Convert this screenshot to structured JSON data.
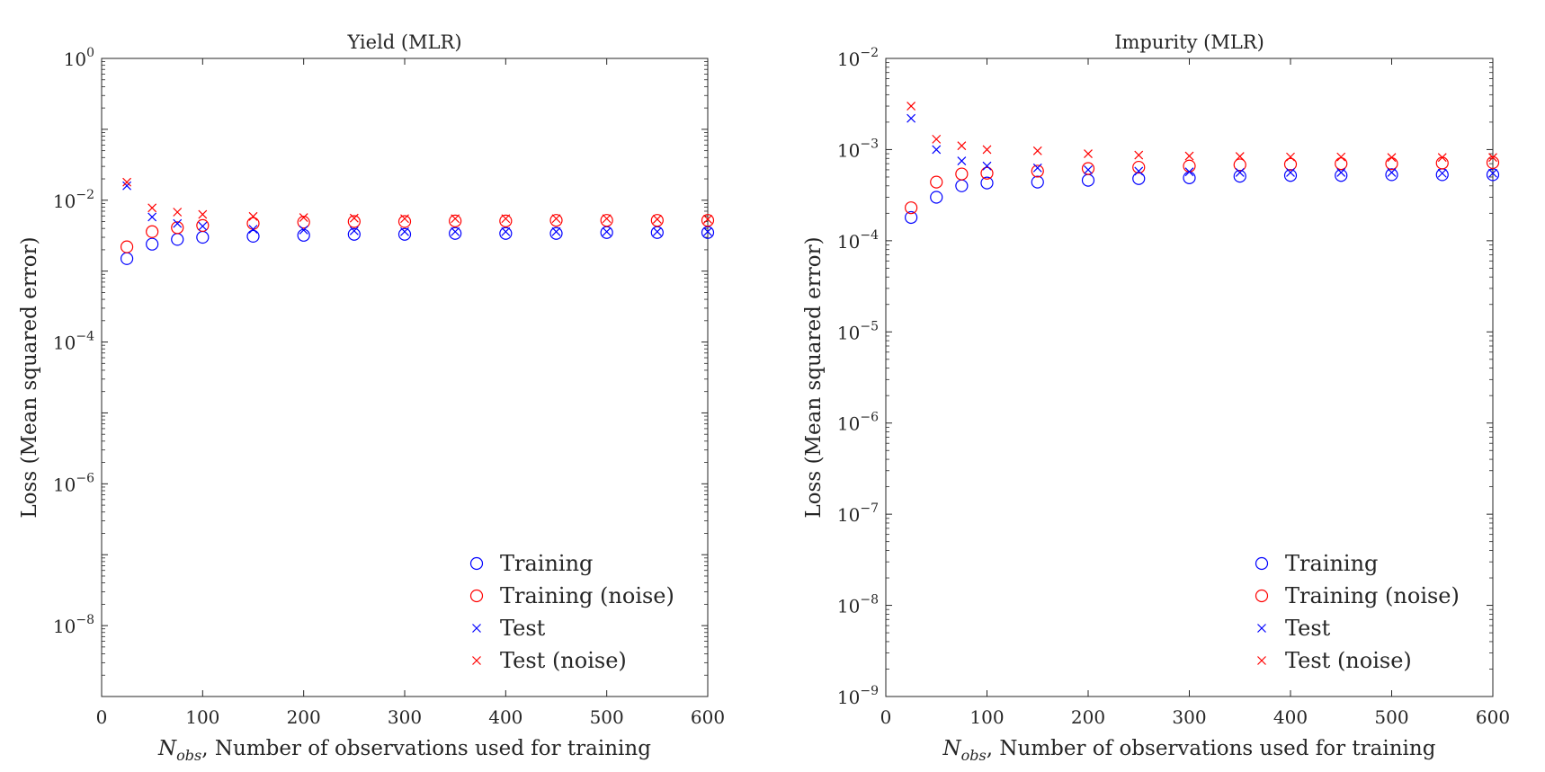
{
  "chart_data": [
    {
      "type": "scatter",
      "title": "Yield (MLR)",
      "xlabel_symbol": "N",
      "xlabel_sub": "obs",
      "xlabel_rest": ", Number of observations used for training",
      "ylabel": "Loss (Mean squared error)",
      "xlim": [
        0,
        600
      ],
      "ylim_exp": [
        -9,
        0
      ],
      "yscale": "log",
      "xticks": [
        0,
        100,
        200,
        300,
        400,
        500,
        600
      ],
      "yticks_exp": [
        -8,
        -6,
        -4,
        -2,
        0
      ],
      "legend_position": "bottom-right",
      "x": [
        25,
        50,
        75,
        100,
        150,
        200,
        250,
        300,
        350,
        400,
        450,
        500,
        550,
        600
      ],
      "series": [
        {
          "name": "Training",
          "marker": "circle",
          "color": "#0000ff",
          "values": [
            0.0015,
            0.0024,
            0.0028,
            0.003,
            0.0031,
            0.0032,
            0.0033,
            0.0033,
            0.0034,
            0.0034,
            0.0034,
            0.0035,
            0.0035,
            0.0035
          ]
        },
        {
          "name": "Training (noise)",
          "marker": "circle",
          "color": "#ff0000",
          "values": [
            0.0022,
            0.0036,
            0.0041,
            0.0044,
            0.0047,
            0.0049,
            0.005,
            0.005,
            0.0051,
            0.0051,
            0.0052,
            0.0052,
            0.0052,
            0.0052
          ]
        },
        {
          "name": "Test",
          "marker": "x",
          "color": "#0000ff",
          "values": [
            0.016,
            0.0058,
            0.0047,
            0.0043,
            0.0039,
            0.0038,
            0.0037,
            0.0036,
            0.0036,
            0.0036,
            0.0036,
            0.0036,
            0.0036,
            0.0036
          ]
        },
        {
          "name": "Test (noise)",
          "marker": "x",
          "color": "#ff0000",
          "values": [
            0.018,
            0.0078,
            0.0068,
            0.0063,
            0.0059,
            0.0057,
            0.0056,
            0.0055,
            0.0055,
            0.0055,
            0.0055,
            0.0055,
            0.0054,
            0.0054
          ]
        }
      ]
    },
    {
      "type": "scatter",
      "title": "Impurity (MLR)",
      "xlabel_symbol": "N",
      "xlabel_sub": "obs",
      "xlabel_rest": ", Number of observations used for training",
      "ylabel": "Loss (Mean squared error)",
      "xlim": [
        0,
        600
      ],
      "ylim_exp": [
        -9,
        -2
      ],
      "yscale": "log",
      "xticks": [
        0,
        100,
        200,
        300,
        400,
        500,
        600
      ],
      "yticks_exp": [
        -9,
        -8,
        -7,
        -6,
        -5,
        -4,
        -3,
        -2
      ],
      "legend_position": "bottom-right",
      "x": [
        25,
        50,
        75,
        100,
        150,
        200,
        250,
        300,
        350,
        400,
        450,
        500,
        550,
        600
      ],
      "series": [
        {
          "name": "Training",
          "marker": "circle",
          "color": "#0000ff",
          "values": [
            0.00018,
            0.0003,
            0.0004,
            0.00043,
            0.00044,
            0.00046,
            0.00048,
            0.00049,
            0.00051,
            0.00052,
            0.00052,
            0.00053,
            0.00053,
            0.00053
          ]
        },
        {
          "name": "Training (noise)",
          "marker": "circle",
          "color": "#ff0000",
          "values": [
            0.00023,
            0.00044,
            0.00054,
            0.00055,
            0.00058,
            0.00062,
            0.00064,
            0.00066,
            0.00068,
            0.00069,
            0.0007,
            0.0007,
            0.00071,
            0.00072
          ]
        },
        {
          "name": "Test",
          "marker": "x",
          "color": "#0000ff",
          "values": [
            0.0022,
            0.001,
            0.00075,
            0.00066,
            0.00063,
            0.0006,
            0.00058,
            0.00057,
            0.00056,
            0.00056,
            0.00056,
            0.00056,
            0.00055,
            0.00055
          ]
        },
        {
          "name": "Test (noise)",
          "marker": "x",
          "color": "#ff0000",
          "values": [
            0.003,
            0.0013,
            0.0011,
            0.001,
            0.00097,
            0.0009,
            0.00087,
            0.00085,
            0.00084,
            0.00083,
            0.00083,
            0.00082,
            0.00082,
            0.00082
          ]
        }
      ]
    }
  ]
}
